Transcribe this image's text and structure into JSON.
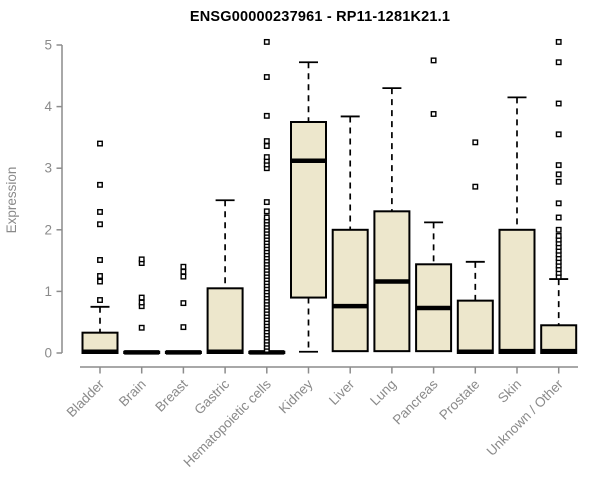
{
  "chart": {
    "title": "ENSG00000237961 - RP11-1281K21.1",
    "ylabel": "Expression"
  },
  "chart_data": {
    "type": "boxplot",
    "title": "ENSG00000237961 - RP11-1281K21.1",
    "xlabel": "",
    "ylabel": "Expression",
    "ylim": [
      0,
      5
    ],
    "yticks": [
      0,
      1,
      2,
      3,
      4,
      5
    ],
    "grid": false,
    "legend": false,
    "categories": [
      "Bladder",
      "Brain",
      "Breast",
      "Gastric",
      "Hematopoietic cells",
      "Kidney",
      "Liver",
      "Lung",
      "Pancreas",
      "Prostate",
      "Skin",
      "Unknown / Other"
    ],
    "series": [
      {
        "name": "Bladder",
        "whisker_low": 0,
        "q1": 0,
        "median": 0.02,
        "q3": 0.33,
        "whisker_high": 0.75,
        "outliers": [
          0.86,
          1.16,
          1.25,
          1.51,
          2.09,
          2.29,
          2.73,
          3.4
        ]
      },
      {
        "name": "Brain",
        "whisker_low": 0,
        "q1": 0,
        "median": 0.01,
        "q3": 0.02,
        "whisker_high": 0.02,
        "outliers": [
          0.41,
          0.76,
          0.82,
          0.9,
          1.46,
          1.52
        ]
      },
      {
        "name": "Breast",
        "whisker_low": 0,
        "q1": 0,
        "median": 0.01,
        "q3": 0.02,
        "whisker_high": 0.02,
        "outliers": [
          0.42,
          0.81,
          1.24,
          1.32,
          1.4
        ]
      },
      {
        "name": "Gastric",
        "whisker_low": 0,
        "q1": 0,
        "median": 0.02,
        "q3": 1.05,
        "whisker_high": 2.48,
        "outliers": []
      },
      {
        "name": "Hematopoietic cells",
        "whisker_low": 0,
        "q1": 0,
        "median": 0.01,
        "q3": 0.02,
        "whisker_high": 0.02,
        "outliers": [
          0.05,
          0.1,
          0.15,
          0.2,
          0.25,
          0.3,
          0.35,
          0.4,
          0.45,
          0.5,
          0.55,
          0.6,
          0.65,
          0.7,
          0.75,
          0.8,
          0.85,
          0.9,
          0.95,
          1.0,
          1.05,
          1.1,
          1.15,
          1.2,
          1.25,
          1.3,
          1.35,
          1.4,
          1.45,
          1.5,
          1.55,
          1.6,
          1.65,
          1.7,
          1.75,
          1.8,
          1.85,
          1.9,
          1.95,
          2.0,
          2.05,
          2.1,
          2.15,
          2.2,
          2.3,
          2.45,
          3.0,
          3.06,
          3.12,
          3.18,
          3.36,
          3.44,
          3.85,
          4.48,
          5.05
        ]
      },
      {
        "name": "Kidney",
        "whisker_low": 0.02,
        "q1": 0.9,
        "median": 3.12,
        "q3": 3.75,
        "whisker_high": 4.72,
        "outliers": []
      },
      {
        "name": "Liver",
        "whisker_low": 0.02,
        "q1": 0.03,
        "median": 0.76,
        "q3": 2.0,
        "whisker_high": 3.84,
        "outliers": []
      },
      {
        "name": "Lung",
        "whisker_low": 0.02,
        "q1": 0.03,
        "median": 1.16,
        "q3": 2.3,
        "whisker_high": 4.3,
        "outliers": []
      },
      {
        "name": "Pancreas",
        "whisker_low": 0.02,
        "q1": 0.03,
        "median": 0.73,
        "q3": 1.44,
        "whisker_high": 2.12,
        "outliers": [
          3.88,
          4.75
        ]
      },
      {
        "name": "Prostate",
        "whisker_low": 0,
        "q1": 0,
        "median": 0.02,
        "q3": 0.85,
        "whisker_high": 1.48,
        "outliers": [
          2.7,
          3.42
        ]
      },
      {
        "name": "Skin",
        "whisker_low": 0,
        "q1": 0,
        "median": 0.03,
        "q3": 2.0,
        "whisker_high": 4.15,
        "outliers": []
      },
      {
        "name": "Unknown / Other",
        "whisker_low": 0,
        "q1": 0,
        "median": 0.03,
        "q3": 0.45,
        "whisker_high": 1.2,
        "outliers": [
          1.24,
          1.3,
          1.36,
          1.42,
          1.48,
          1.54,
          1.6,
          1.66,
          1.72,
          1.78,
          1.84,
          1.9,
          2.0,
          2.2,
          2.43,
          2.78,
          2.9,
          3.05,
          3.55,
          4.05,
          4.72,
          5.05
        ]
      }
    ],
    "colors": {
      "box_fill": "#EDE7CC",
      "box_stroke": "#000000",
      "median": "#000000",
      "whisker": "#000000",
      "axis": "#8C8C8C",
      "tick_text": "#8A8A8A",
      "title_text": "#000000",
      "background": "#FFFFFF"
    }
  }
}
